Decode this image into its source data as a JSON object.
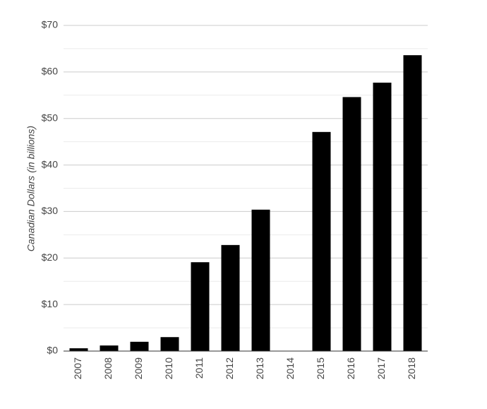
{
  "chart_data": {
    "type": "bar",
    "y_axis_label": "Canadian Dollars (in billions)",
    "categories": [
      "2007",
      "2008",
      "2009",
      "2010",
      "2011",
      "2012",
      "2013",
      "2014",
      "2015",
      "2016",
      "2017",
      "2018"
    ],
    "values": [
      0.6,
      1.2,
      2.0,
      3.0,
      19.1,
      22.8,
      30.4,
      null,
      47.1,
      54.6,
      57.7,
      63.6
    ],
    "color": "#000000",
    "ylim": [
      0,
      70
    ],
    "yticks": [
      {
        "value": 0,
        "label": "$0"
      },
      {
        "value": 10,
        "label": "$10"
      },
      {
        "value": 20,
        "label": "$20"
      },
      {
        "value": 30,
        "label": "$30"
      },
      {
        "value": 40,
        "label": "$40"
      },
      {
        "value": 50,
        "label": "$50"
      },
      {
        "value": 60,
        "label": "$60"
      },
      {
        "value": 70,
        "label": "$70"
      }
    ],
    "grid": true
  }
}
